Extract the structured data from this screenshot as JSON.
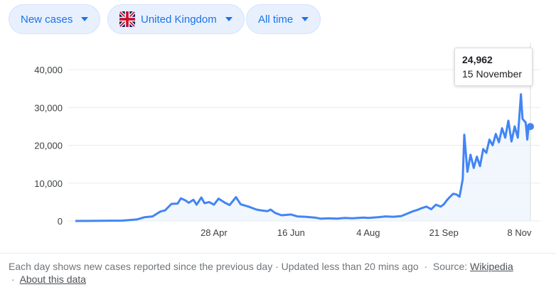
{
  "filters": {
    "metric": "New cases",
    "country": "United Kingdom",
    "range": "All time"
  },
  "tooltip": {
    "value": "24,962",
    "date": "15 November"
  },
  "footer": {
    "note": "Each day shows new cases reported since the previous day · Updated less than 20 mins ago",
    "source_label": "Source:",
    "source_link": "Wikipedia",
    "about_link": "About this data"
  },
  "colors": {
    "line": "#4285f4",
    "fill": "#e8f0fe",
    "chip_bg": "#e8f0fe",
    "chip_text": "#1a73e8"
  },
  "icons": {
    "caret": "caret-down-icon",
    "flag": "uk-flag-icon"
  },
  "chart_data": {
    "type": "area",
    "title": "",
    "xlabel": "",
    "ylabel": "",
    "ylim": [
      0,
      40000
    ],
    "y_ticks": [
      0,
      10000,
      20000,
      30000,
      40000
    ],
    "y_tick_labels": [
      "0",
      "10,000",
      "20,000",
      "30,000",
      "40,000"
    ],
    "x_tick_labels": [
      {
        "label": "28 Apr",
        "x": "2020-04-28"
      },
      {
        "label": "16 Jun",
        "x": "2020-06-16"
      },
      {
        "label": "4 Aug",
        "x": "2020-08-04"
      },
      {
        "label": "21 Sep",
        "x": "2020-09-21"
      },
      {
        "label": "8 Nov",
        "x": "2020-11-08"
      }
    ],
    "xlim": [
      "2020-01-31",
      "2020-11-15"
    ],
    "grid": true,
    "series": [
      {
        "x": [
          "2020-01-31",
          "2020-03-01",
          "2020-03-10",
          "2020-03-15",
          "2020-03-20",
          "2020-03-25",
          "2020-03-28",
          "2020-04-01",
          "2020-04-05",
          "2020-04-07",
          "2020-04-10",
          "2020-04-12",
          "2020-04-15",
          "2020-04-17",
          "2020-04-20",
          "2020-04-22",
          "2020-04-25",
          "2020-04-28",
          "2020-05-01",
          "2020-05-05",
          "2020-05-08",
          "2020-05-12",
          "2020-05-15",
          "2020-05-20",
          "2020-05-25",
          "2020-05-28",
          "2020-06-01",
          "2020-06-03",
          "2020-06-06",
          "2020-06-10",
          "2020-06-16",
          "2020-06-20",
          "2020-06-25",
          "2020-07-01",
          "2020-07-05",
          "2020-07-10",
          "2020-07-15",
          "2020-07-20",
          "2020-07-25",
          "2020-08-01",
          "2020-08-04",
          "2020-08-10",
          "2020-08-15",
          "2020-08-20",
          "2020-08-25",
          "2020-08-28",
          "2020-09-01",
          "2020-09-04",
          "2020-09-07",
          "2020-09-10",
          "2020-09-13",
          "2020-09-16",
          "2020-09-19",
          "2020-09-21",
          "2020-09-23",
          "2020-09-25",
          "2020-09-27",
          "2020-09-29",
          "2020-10-01",
          "2020-10-03",
          "2020-10-04",
          "2020-10-06",
          "2020-10-08",
          "2020-10-10",
          "2020-10-12",
          "2020-10-14",
          "2020-10-16",
          "2020-10-18",
          "2020-10-20",
          "2020-10-22",
          "2020-10-24",
          "2020-10-26",
          "2020-10-28",
          "2020-10-30",
          "2020-11-01",
          "2020-11-03",
          "2020-11-05",
          "2020-11-07",
          "2020-11-09",
          "2020-11-10",
          "2020-11-12",
          "2020-11-13",
          "2020-11-14",
          "2020-11-15"
        ],
        "values": [
          0,
          100,
          400,
          1000,
          1200,
          2500,
          2800,
          4500,
          4600,
          6000,
          5400,
          4800,
          5600,
          4300,
          6200,
          4700,
          5000,
          4300,
          5900,
          4800,
          4200,
          6300,
          4400,
          3800,
          3000,
          2800,
          2600,
          3000,
          2100,
          1500,
          1700,
          1200,
          1100,
          900,
          600,
          700,
          600,
          800,
          700,
          900,
          800,
          1000,
          1200,
          1100,
          1300,
          1800,
          2500,
          2900,
          3400,
          3800,
          3100,
          4300,
          3800,
          4400,
          5500,
          6400,
          7200,
          7000,
          6400,
          11000,
          22800,
          13000,
          17500,
          14000,
          17000,
          14500,
          19000,
          18000,
          21500,
          20000,
          23000,
          20800,
          24500,
          22000,
          26500,
          21000,
          25000,
          22000,
          33500,
          27000,
          26000,
          21500,
          25500,
          24962
        ]
      }
    ]
  }
}
